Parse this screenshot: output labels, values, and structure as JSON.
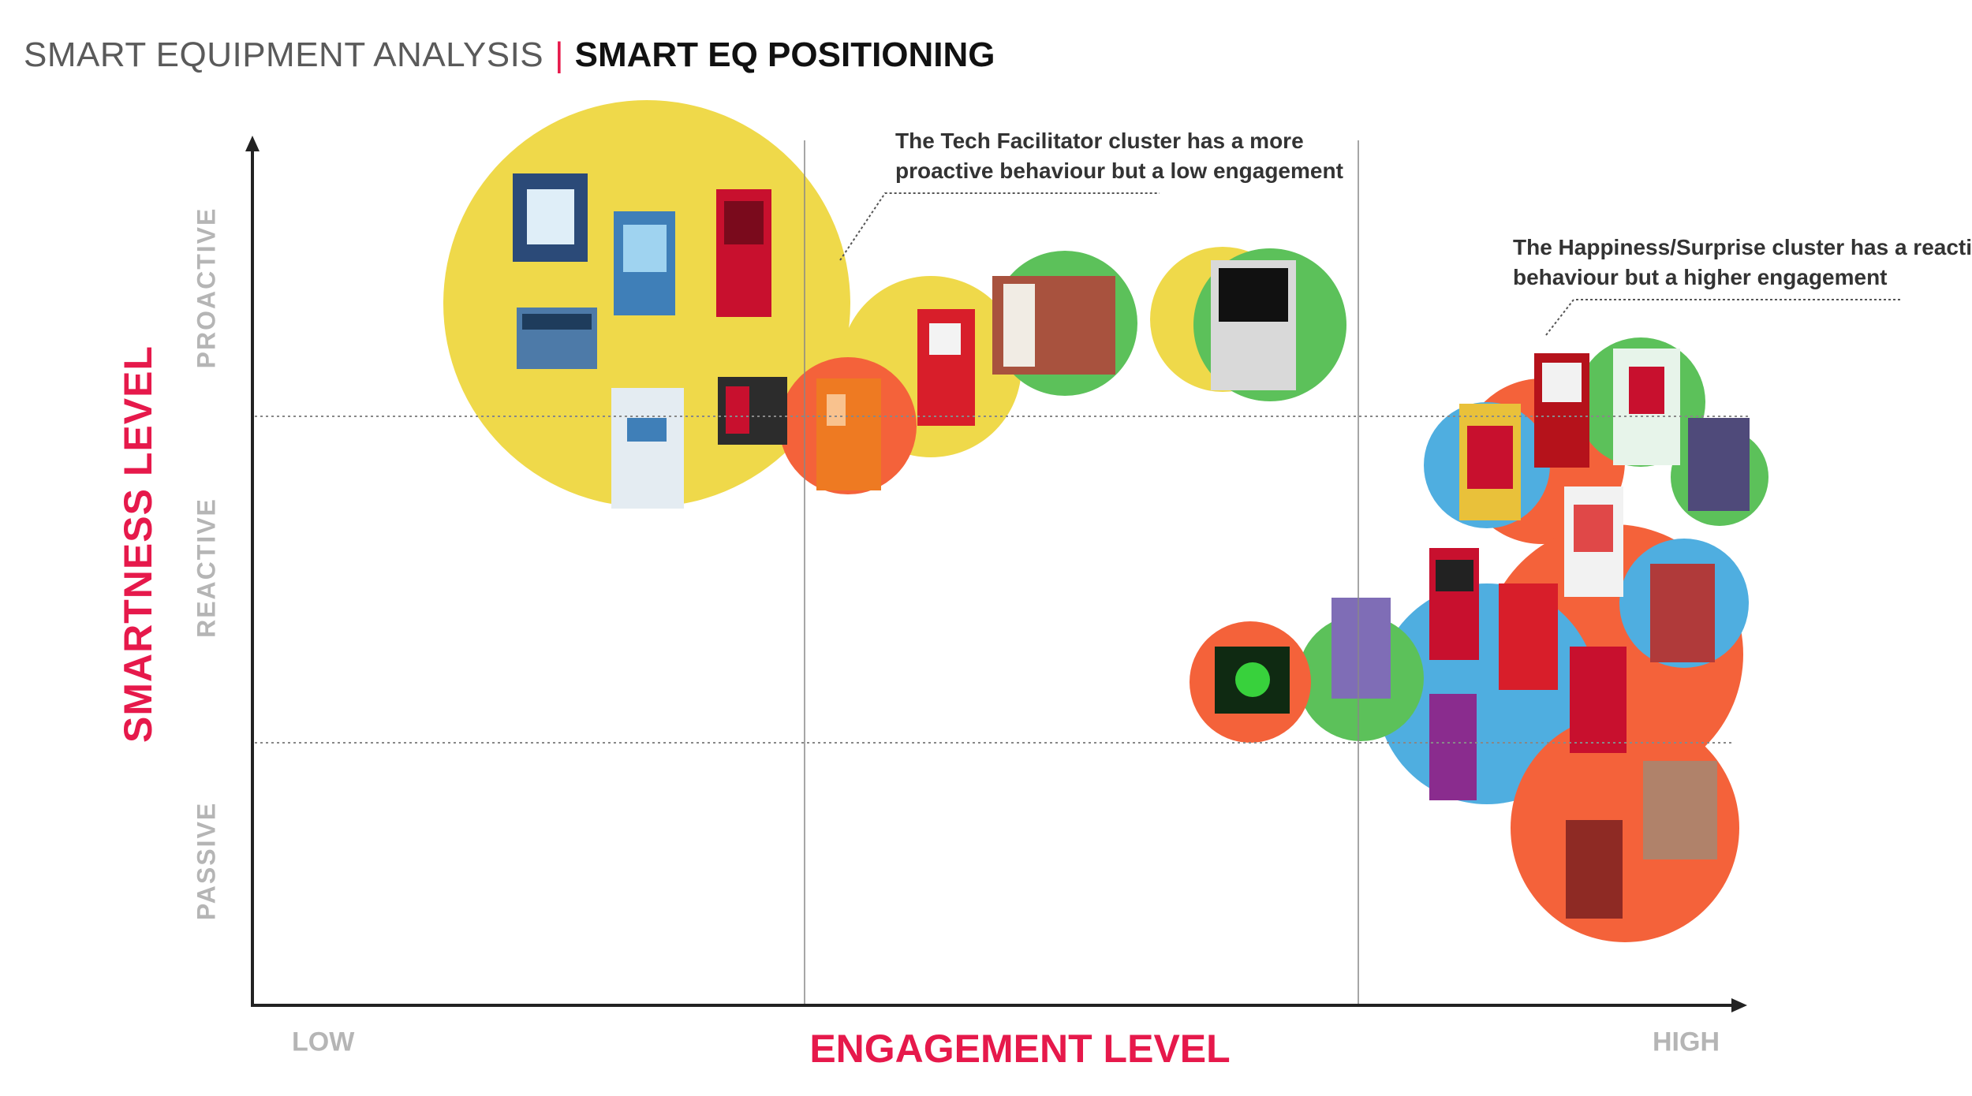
{
  "header": {
    "title": "SMART EQUIPMENT ANALYSIS",
    "separator": "|",
    "subtitle": "SMART EQ POSITIONING"
  },
  "axes": {
    "y_title": "SMARTNESS LEVEL",
    "y_levels": [
      "PROACTIVE",
      "REACTIVE",
      "PASSIVE"
    ],
    "x_title": "ENGAGEMENT LEVEL",
    "x_low": "LOW",
    "x_high": "HIGH"
  },
  "annotations": {
    "tech_line1": "The Tech Facilitator cluster has a more",
    "tech_line2": "proactive behaviour but a low engagement",
    "happy_line1": "The Happiness/Surprise cluster has a reactive",
    "happy_line2": "behaviour but a higher engagement"
  },
  "colors": {
    "accent": "#e6194b",
    "yellow": "#efd94a",
    "orange": "#f4623a",
    "green": "#5cc15a",
    "blue": "#4faee0"
  }
}
